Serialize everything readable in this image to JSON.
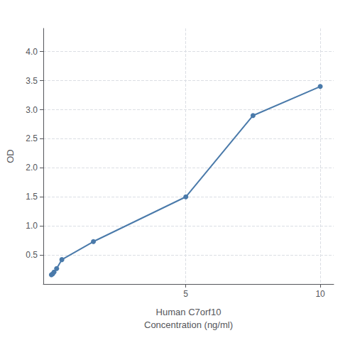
{
  "chart_data": {
    "type": "line",
    "xlabel": "Human C7orf10\nConcentration (ng/ml)",
    "ylabel": "OD",
    "x": [
      0.0,
      0.049,
      0.098,
      0.195,
      0.39,
      1.563,
      5.0,
      7.5,
      10.0
    ],
    "values": [
      0.158,
      0.175,
      0.205,
      0.265,
      0.42,
      0.73,
      1.5,
      2.9,
      3.4
    ],
    "color": "#4a7aaa",
    "marker": "circle",
    "xlim": [
      -0.3,
      10.5
    ],
    "xticks": [
      5,
      10
    ],
    "ylim": [
      0,
      4.4
    ],
    "yticks": [
      0.5,
      {
        "value": 1.0,
        "label": "1.0"
      },
      1.5,
      {
        "value": 2.0,
        "label": "2.0"
      },
      2.5,
      {
        "value": 3.0,
        "label": "3.0"
      },
      3.5,
      {
        "value": 4.0,
        "label": "4.0"
      }
    ],
    "grid": true
  }
}
